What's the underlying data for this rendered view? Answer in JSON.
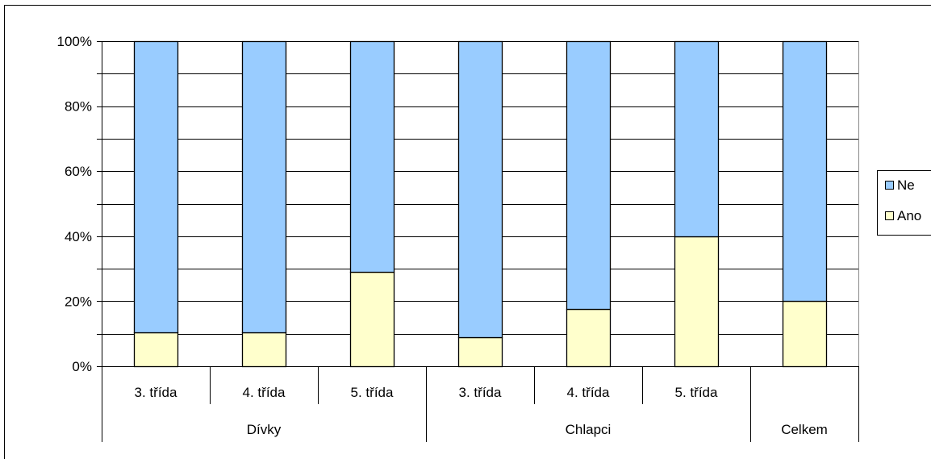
{
  "chart_data": {
    "type": "bar",
    "stacked": "percent",
    "categories": [
      "3. třída",
      "4. třída",
      "5. třída",
      "3. třída",
      "4. třída",
      "5. třída",
      ""
    ],
    "groups": [
      {
        "label": "Dívky",
        "span": 3
      },
      {
        "label": "Chlapci",
        "span": 3
      },
      {
        "label": "Celkem",
        "span": 1
      }
    ],
    "series": [
      {
        "name": "Ano",
        "color": "#FFFFCC",
        "values": [
          10.5,
          10.5,
          29,
          9,
          17.5,
          40,
          20
        ]
      },
      {
        "name": "Ne",
        "color": "#99CCFF",
        "values": [
          89.5,
          89.5,
          71,
          91,
          82.5,
          60,
          80
        ]
      }
    ],
    "legend_order": [
      "Ne",
      "Ano"
    ],
    "ylim": [
      0,
      100
    ],
    "yticks": [
      "0%",
      "20%",
      "40%",
      "60%",
      "80%",
      "100%"
    ],
    "grid": true,
    "legend_position": "right",
    "title": "",
    "xlabel": "",
    "ylabel": ""
  }
}
